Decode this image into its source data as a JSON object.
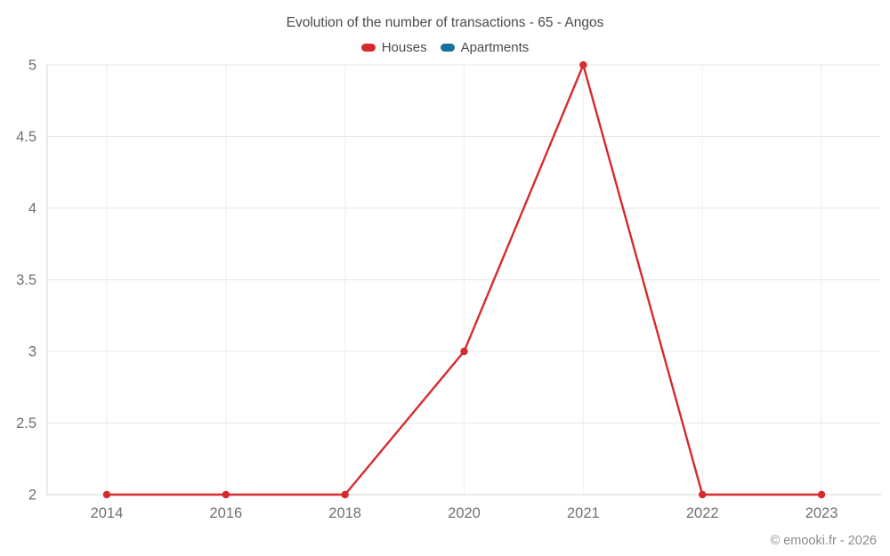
{
  "title": "Evolution of the number of transactions - 65 - Angos",
  "footer": "© emooki.fr - 2026",
  "legend": [
    {
      "label": "Houses",
      "color": "#d62b2e"
    },
    {
      "label": "Apartments",
      "color": "#16719f"
    }
  ],
  "chart_data": {
    "type": "line",
    "title": "Evolution of the number of transactions - 65 - Angos",
    "categories": [
      "2014",
      "2016",
      "2018",
      "2020",
      "2021",
      "2022",
      "2023"
    ],
    "series": [
      {
        "name": "Houses",
        "color": "#d62b2e",
        "values": [
          2,
          2,
          2,
          3,
          5,
          2,
          2
        ]
      },
      {
        "name": "Apartments",
        "color": "#16719f",
        "values": []
      }
    ],
    "xlabel": "",
    "ylabel": "",
    "ylim": [
      2,
      5
    ],
    "yticks": [
      2,
      2.5,
      3,
      3.5,
      4,
      4.5,
      5
    ],
    "grid": true,
    "legend_position": "top"
  }
}
